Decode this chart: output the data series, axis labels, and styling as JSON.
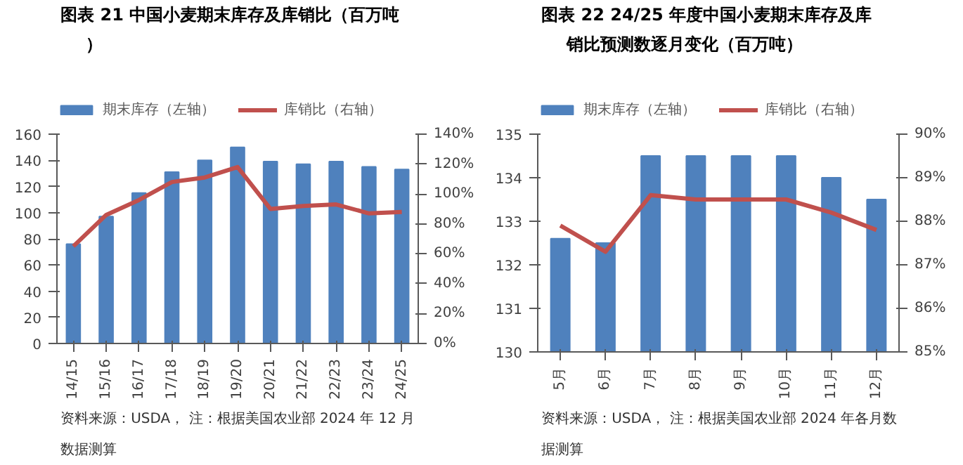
{
  "chart_data": [
    {
      "type": "bar",
      "title": "图表 21 中国小麦期末库存及库销比（百万吨）",
      "categories": [
        "14/15",
        "15/16",
        "16/17",
        "17/18",
        "18/19",
        "19/20",
        "20/21",
        "21/22",
        "22/23",
        "23/24",
        "24/25"
      ],
      "series": [
        {
          "name": "期末库存（左轴）",
          "color": "#4f81bd",
          "values": [
            76,
            97,
            115,
            131,
            140,
            150,
            139,
            137,
            139,
            135,
            133
          ]
        },
        {
          "name": "库销比（右轴）",
          "type": "line",
          "axis": "y2",
          "color": "#c0504d",
          "values": [
            65,
            86,
            96,
            108,
            111,
            118,
            90,
            92,
            93,
            87,
            88
          ]
        }
      ],
      "ylim": [
        0,
        160
      ],
      "yticks": [
        0,
        20,
        40,
        60,
        80,
        100,
        120,
        140,
        160
      ],
      "y2lim": [
        0,
        140
      ],
      "y2ticks": [
        {
          "value": 0,
          "label": "0%"
        },
        {
          "value": 20,
          "label": "20%"
        },
        {
          "value": 40,
          "label": "40%"
        },
        {
          "value": 60,
          "label": "60%"
        },
        {
          "value": 80,
          "label": "80%"
        },
        {
          "value": 100,
          "label": "100%"
        },
        {
          "value": 120,
          "label": "120%"
        },
        {
          "value": 140,
          "label": "140%"
        }
      ],
      "legend": "top",
      "grid": false,
      "annotations": [
        "资料来源：USDA， 注：根据美国农业部 2024 年 12 月数据测算"
      ]
    },
    {
      "type": "bar",
      "title": "图表 22 24/25 年度中国小麦期末库存及库销比预测数逐月变化（百万吨）",
      "categories": [
        "5月",
        "6月",
        "7月",
        "8月",
        "9月",
        "10月",
        "11月",
        "12月"
      ],
      "series": [
        {
          "name": "期末库存（左轴）",
          "color": "#4f81bd",
          "values": [
            132.6,
            132.5,
            134.5,
            134.5,
            134.5,
            134.5,
            134.0,
            133.5
          ]
        },
        {
          "name": "库销比（右轴）",
          "type": "line",
          "axis": "y2",
          "color": "#c0504d",
          "values": [
            87.9,
            87.3,
            88.6,
            88.5,
            88.5,
            88.5,
            88.2,
            87.8
          ]
        }
      ],
      "ylim": [
        130,
        135
      ],
      "yticks": [
        130,
        131,
        132,
        133,
        134,
        135
      ],
      "y2lim": [
        85,
        90
      ],
      "y2ticks": [
        {
          "value": 85,
          "label": "85%"
        },
        {
          "value": 86,
          "label": "86%"
        },
        {
          "value": 87,
          "label": "87%"
        },
        {
          "value": 88,
          "label": "88%"
        },
        {
          "value": 89,
          "label": "89%"
        },
        {
          "value": 90,
          "label": "90%"
        }
      ],
      "legend": "top",
      "grid": false,
      "annotations": [
        "资料来源：USDA， 注：根据美国农业部 2024 年各月数据测算"
      ]
    }
  ]
}
